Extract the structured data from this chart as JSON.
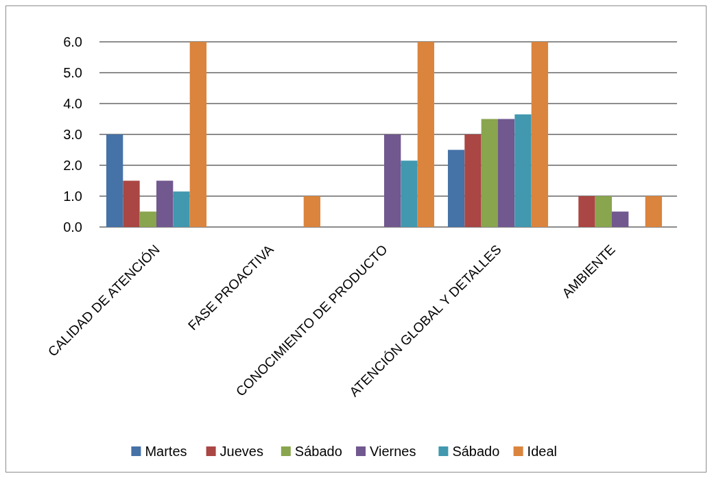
{
  "chart_data": {
    "type": "bar",
    "categories": [
      "CALIDAD DE ATENCIÓN",
      "FASE PROACTIVA",
      "CONOCIMIENTO DE PRODUCTO",
      "ATENCIÓN GLOBAL Y DETALLES",
      "AMBIENTE"
    ],
    "series": [
      {
        "name": "Martes",
        "color": "#4572a7",
        "values": [
          3.0,
          0,
          0,
          2.5,
          0
        ]
      },
      {
        "name": "Jueves",
        "color": "#aa4643",
        "values": [
          1.5,
          0,
          0,
          3.0,
          1.0
        ]
      },
      {
        "name": "Sábado",
        "color": "#89a54e",
        "values": [
          0.5,
          0,
          0,
          3.5,
          1.0
        ]
      },
      {
        "name": "Viernes",
        "color": "#71588f",
        "values": [
          1.5,
          0,
          3.0,
          3.5,
          0.5
        ]
      },
      {
        "name": "Sábado",
        "color": "#4198af",
        "values": [
          1.15,
          0,
          2.15,
          3.65,
          0
        ]
      },
      {
        "name": "Ideal",
        "color": "#db843d",
        "values": [
          6.0,
          1.0,
          6.0,
          6.0,
          1.0
        ]
      }
    ],
    "ylim": [
      0,
      6
    ],
    "yticks": [
      {
        "value": 0,
        "label": "0.0"
      },
      {
        "value": 1,
        "label": "1.0"
      },
      {
        "value": 2,
        "label": "2.0"
      },
      {
        "value": 3,
        "label": "3.0"
      },
      {
        "value": 4,
        "label": "4.0"
      },
      {
        "value": 5,
        "label": "5.0"
      },
      {
        "value": 6,
        "label": "6.0"
      }
    ],
    "grid": "y",
    "legend": "bottom"
  }
}
